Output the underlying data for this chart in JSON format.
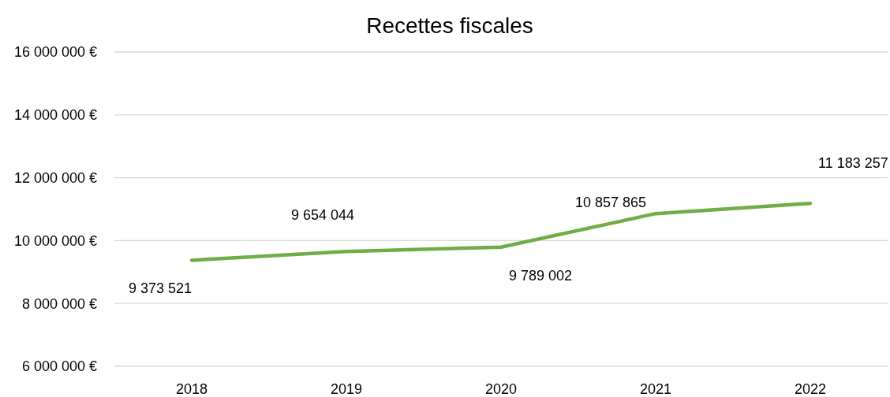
{
  "chart_data": {
    "type": "line",
    "title": "Recettes fiscales",
    "categories": [
      "2018",
      "2019",
      "2020",
      "2021",
      "2022"
    ],
    "series": [
      {
        "color": "#70ad47",
        "values": [
          9373521,
          9654044,
          9789002,
          10857865,
          11183257
        ]
      }
    ],
    "ylim": [
      6000000,
      16000000
    ],
    "yticks": [
      {
        "value": 6000000,
        "label": "6 000 000 €"
      },
      {
        "value": 8000000,
        "label": "8 000 000 €"
      },
      {
        "value": 10000000,
        "label": "10 000 000 €"
      },
      {
        "value": 12000000,
        "label": "12 000 000 €"
      },
      {
        "value": 14000000,
        "label": "14 000 000 €"
      },
      {
        "value": 16000000,
        "label": "16 000 000 €"
      }
    ],
    "grid": "y",
    "data_labels": true,
    "marker": "none",
    "line_style": "solid"
  }
}
